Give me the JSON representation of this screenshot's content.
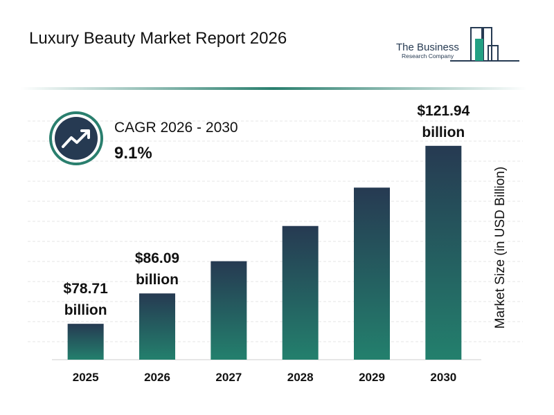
{
  "header": {
    "title": "Luxury Beauty Market Report 2026",
    "logo_line1": "The Business",
    "logo_line2": "Research Company"
  },
  "cagr": {
    "label": "CAGR 2026 - 2030",
    "value": "9.1%"
  },
  "chart_data": {
    "type": "bar",
    "y_label": "Market Size (in USD Billion)",
    "categories": [
      "2025",
      "2026",
      "2027",
      "2028",
      "2029",
      "2030"
    ],
    "values": [
      78.71,
      86.09,
      93.92,
      102.47,
      111.79,
      121.94
    ],
    "value_labels": [
      "$78.71 billion",
      "$86.09 billion",
      null,
      null,
      null,
      "$121.94 billion"
    ],
    "colors": [
      "#263a52",
      "#23806d"
    ],
    "ylim": [
      70,
      133
    ]
  }
}
